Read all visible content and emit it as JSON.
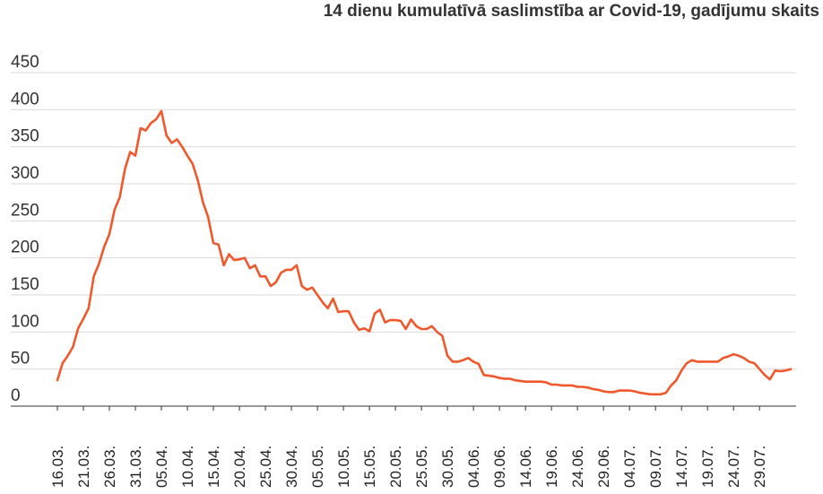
{
  "chart_data": {
    "type": "line",
    "title": "14 dienu kumulatīvā saslimstība ar Covid-19, gadījumu skaits",
    "xlabel": "",
    "ylabel": "",
    "ylim": [
      0,
      450
    ],
    "yticks": [
      0,
      50,
      100,
      150,
      200,
      250,
      300,
      350,
      400,
      450
    ],
    "xticks": [
      "16.03.",
      "21.03.",
      "26.03.",
      "31.03.",
      "05.04.",
      "10.04.",
      "15.04.",
      "20.04.",
      "25.04.",
      "30.04.",
      "05.05.",
      "10.05.",
      "15.05.",
      "20.05.",
      "25.05.",
      "30.05.",
      "04.06.",
      "09.06.",
      "14.06.",
      "19.06.",
      "24.06.",
      "29.06.",
      "04.07.",
      "09.07.",
      "14.07.",
      "19.07.",
      "24.07.",
      "29.07."
    ],
    "grid": true,
    "legend": "none",
    "line_color": "#f0582c",
    "series": [
      {
        "x_start": "16.03.",
        "x_step_days": 1,
        "values": [
          35,
          58,
          68,
          80,
          105,
          118,
          132,
          175,
          192,
          215,
          232,
          265,
          282,
          320,
          343,
          338,
          375,
          372,
          382,
          387,
          398,
          365,
          355,
          360,
          350,
          338,
          327,
          305,
          275,
          255,
          220,
          218,
          190,
          205,
          197,
          198,
          200,
          186,
          190,
          175,
          175,
          162,
          167,
          180,
          184,
          184,
          190,
          162,
          157,
          160,
          150,
          140,
          132,
          145,
          127,
          128,
          128,
          113,
          103,
          105,
          101,
          125,
          130,
          113,
          116,
          116,
          115,
          104,
          117,
          108,
          104,
          104,
          108,
          100,
          95,
          68,
          60,
          60,
          62,
          65,
          60,
          57,
          42,
          41,
          40,
          38,
          37,
          37,
          35,
          34,
          33,
          33,
          33,
          33,
          32,
          29,
          29,
          28,
          28,
          28,
          26,
          26,
          25,
          23,
          22,
          20,
          19,
          19,
          21,
          21,
          21,
          20,
          18,
          17,
          16,
          16,
          16,
          18,
          28,
          35,
          48,
          58,
          62,
          60,
          60,
          60,
          60,
          60,
          65,
          67,
          70,
          68,
          65,
          60,
          58,
          50,
          42,
          36,
          48,
          47,
          48,
          50
        ]
      }
    ]
  }
}
